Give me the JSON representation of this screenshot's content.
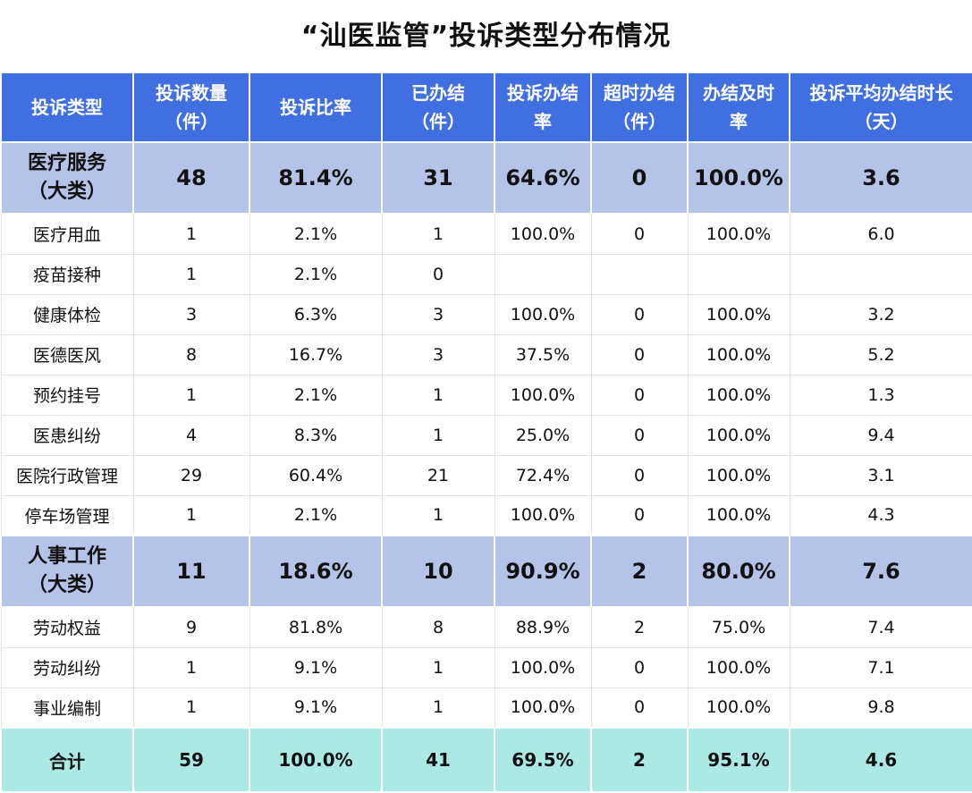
{
  "title": "“汕医监管”投诉类型分布情况",
  "headers": [
    "投诉类型",
    "投诉数量（件）",
    "投诉比率",
    "已办结（件）",
    "投诉办结率",
    "超时办结（件）",
    "办结及时率",
    "投诉平均办结时长（天）"
  ],
  "header_lines": [
    [
      "投诉类型"
    ],
    [
      "投诉数量",
      "（件）"
    ],
    [
      "投诉比率"
    ],
    [
      "已办结",
      "（件）"
    ],
    [
      "投诉办结",
      "率"
    ],
    [
      "超时办结",
      "（件）"
    ],
    [
      "办结及时",
      "率"
    ],
    [
      "投诉平均办结时长",
      "（天）"
    ]
  ],
  "groups": [
    {
      "category": {
        "label_lines": [
          "医疗服务",
          "（大类）"
        ],
        "count": "48",
        "ratio": "81.4%",
        "closed": "31",
        "close_rate": "64.6%",
        "overdue": "0",
        "timely_rate": "100.0%",
        "avg_days": "3.6"
      },
      "rows": [
        {
          "type": "医疗用血",
          "count": "1",
          "ratio": "2.1%",
          "closed": "1",
          "close_rate": "100.0%",
          "overdue": "0",
          "timely_rate": "100.0%",
          "avg_days": "6.0"
        },
        {
          "type": "疫苗接种",
          "count": "1",
          "ratio": "2.1%",
          "closed": "0",
          "close_rate": "",
          "overdue": "",
          "timely_rate": "",
          "avg_days": ""
        },
        {
          "type": "健康体检",
          "count": "3",
          "ratio": "6.3%",
          "closed": "3",
          "close_rate": "100.0%",
          "overdue": "0",
          "timely_rate": "100.0%",
          "avg_days": "3.2"
        },
        {
          "type": "医德医风",
          "count": "8",
          "ratio": "16.7%",
          "closed": "3",
          "close_rate": "37.5%",
          "overdue": "0",
          "timely_rate": "100.0%",
          "avg_days": "5.2"
        },
        {
          "type": "预约挂号",
          "count": "1",
          "ratio": "2.1%",
          "closed": "1",
          "close_rate": "100.0%",
          "overdue": "0",
          "timely_rate": "100.0%",
          "avg_days": "1.3"
        },
        {
          "type": "医患纠纷",
          "count": "4",
          "ratio": "8.3%",
          "closed": "1",
          "close_rate": "25.0%",
          "overdue": "0",
          "timely_rate": "100.0%",
          "avg_days": "9.4"
        },
        {
          "type": "医院行政管理",
          "count": "29",
          "ratio": "60.4%",
          "closed": "21",
          "close_rate": "72.4%",
          "overdue": "0",
          "timely_rate": "100.0%",
          "avg_days": "3.1"
        },
        {
          "type": "停车场管理",
          "count": "1",
          "ratio": "2.1%",
          "closed": "1",
          "close_rate": "100.0%",
          "overdue": "0",
          "timely_rate": "100.0%",
          "avg_days": "4.3"
        }
      ]
    },
    {
      "category": {
        "label_lines": [
          "人事工作",
          "（大类）"
        ],
        "count": "11",
        "ratio": "18.6%",
        "closed": "10",
        "close_rate": "90.9%",
        "overdue": "2",
        "timely_rate": "80.0%",
        "avg_days": "7.6"
      },
      "rows": [
        {
          "type": "劳动权益",
          "count": "9",
          "ratio": "81.8%",
          "closed": "8",
          "close_rate": "88.9%",
          "overdue": "2",
          "timely_rate": "75.0%",
          "avg_days": "7.4"
        },
        {
          "type": "劳动纠纷",
          "count": "1",
          "ratio": "9.1%",
          "closed": "1",
          "close_rate": "100.0%",
          "overdue": "0",
          "timely_rate": "100.0%",
          "avg_days": "7.1"
        },
        {
          "type": "事业编制",
          "count": "1",
          "ratio": "9.1%",
          "closed": "1",
          "close_rate": "100.0%",
          "overdue": "0",
          "timely_rate": "100.0%",
          "avg_days": "9.8"
        }
      ]
    }
  ],
  "total": {
    "type": "合计",
    "count": "59",
    "ratio": "100.0%",
    "closed": "41",
    "close_rate": "69.5%",
    "overdue": "2",
    "timely_rate": "95.1%",
    "avg_days": "4.6"
  },
  "colors": {
    "header_bg": "#3f6fe0",
    "category_bg": "#b4c4e8",
    "total_bg": "#abe9e4"
  }
}
